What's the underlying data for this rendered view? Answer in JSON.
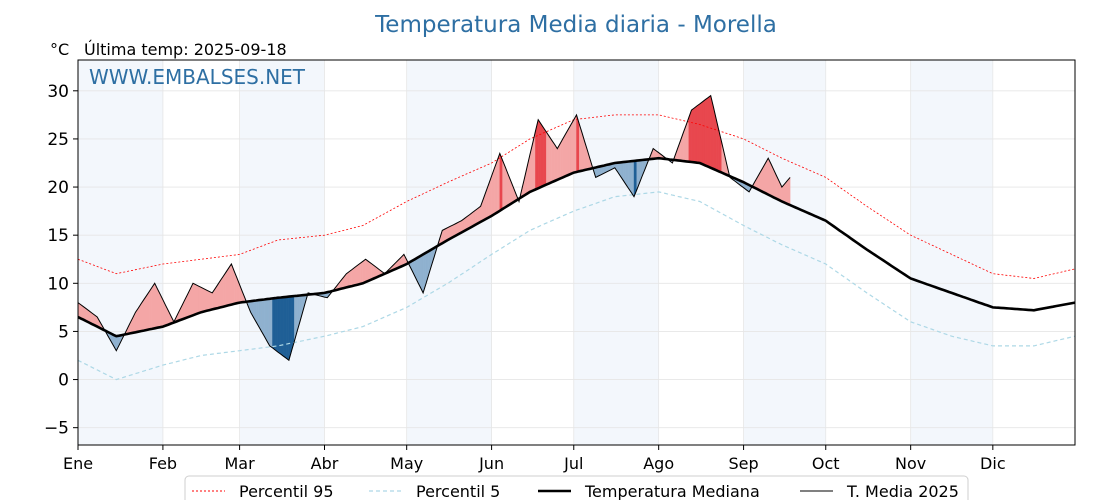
{
  "chart_data": {
    "type": "line",
    "title": "Temperatura Media diaria - Morella",
    "unit": "°C",
    "subtitle": "Última temp: 2025-09-18",
    "watermark": "WWW.EMBALSES.NET",
    "y_ticks": [
      -5,
      0,
      5,
      10,
      15,
      20,
      25,
      30
    ],
    "ylim": [
      -6.8,
      33.2
    ],
    "xlim": [
      1,
      365
    ],
    "x_ticks": [
      {
        "label": "Ene",
        "day": 1
      },
      {
        "label": "Feb",
        "day": 32
      },
      {
        "label": "Mar",
        "day": 60
      },
      {
        "label": "Abr",
        "day": 91
      },
      {
        "label": "May",
        "day": 121
      },
      {
        "label": "Jun",
        "day": 152
      },
      {
        "label": "Jul",
        "day": 182
      },
      {
        "label": "Ago",
        "day": 213
      },
      {
        "label": "Sep",
        "day": 244
      },
      {
        "label": "Oct",
        "day": 274
      },
      {
        "label": "Nov",
        "day": 305
      },
      {
        "label": "Dic",
        "day": 335
      }
    ],
    "grid": true,
    "shaded_months": [
      "Ene",
      "Mar",
      "May",
      "Jul",
      "Sep",
      "Nov"
    ],
    "legend": {
      "placement": "bottom",
      "items": [
        {
          "label": "Percentil 95",
          "color": "#ff0000",
          "style": "dotted"
        },
        {
          "label": "Percentil 5",
          "color": "#add8e6",
          "style": "dashed"
        },
        {
          "label": "Temperatura Mediana",
          "color": "#000000",
          "style": "thick"
        },
        {
          "label": "T. Media 2025",
          "color": "#000000",
          "style": "thin"
        }
      ]
    },
    "colors": {
      "above_median": "#f4a6a6",
      "above_p95": "#e8474e",
      "below_median": "#8fb1cf",
      "below_p5": "#1f5f96",
      "title": "#2e6fa3"
    },
    "series": [
      {
        "name": "Temperatura Mediana",
        "x": [
          1,
          15,
          32,
          46,
          60,
          74,
          91,
          105,
          121,
          136,
          152,
          166,
          182,
          197,
          213,
          228,
          244,
          258,
          274,
          289,
          305,
          320,
          335,
          350,
          365
        ],
        "values": [
          6.5,
          4.5,
          5.5,
          7.0,
          8.0,
          8.5,
          9.0,
          10.0,
          12.0,
          14.5,
          17.0,
          19.5,
          21.5,
          22.5,
          23.0,
          22.5,
          20.5,
          18.5,
          16.5,
          13.5,
          10.5,
          9.0,
          7.5,
          7.2,
          8.0
        ]
      },
      {
        "name": "Percentil 95",
        "x": [
          1,
          15,
          32,
          46,
          60,
          74,
          91,
          105,
          121,
          136,
          152,
          166,
          182,
          197,
          213,
          228,
          244,
          258,
          274,
          289,
          305,
          320,
          335,
          350,
          365
        ],
        "values": [
          12.5,
          11.0,
          12.0,
          12.5,
          13.0,
          14.5,
          15.0,
          16.0,
          18.5,
          20.5,
          22.5,
          25.0,
          27.0,
          27.5,
          27.5,
          26.5,
          25.0,
          23.0,
          21.0,
          18.0,
          15.0,
          13.0,
          11.0,
          10.5,
          11.5
        ]
      },
      {
        "name": "Percentil 5",
        "x": [
          1,
          15,
          32,
          46,
          60,
          74,
          91,
          105,
          121,
          136,
          152,
          166,
          182,
          197,
          213,
          228,
          244,
          258,
          274,
          289,
          305,
          320,
          335,
          350,
          365
        ],
        "values": [
          2.0,
          0.0,
          1.5,
          2.5,
          3.0,
          3.5,
          4.5,
          5.5,
          7.5,
          10.0,
          13.0,
          15.5,
          17.5,
          19.0,
          19.5,
          18.5,
          16.0,
          14.0,
          12.0,
          9.0,
          6.0,
          4.5,
          3.5,
          3.5,
          4.5
        ]
      },
      {
        "name": "T. Media 2025",
        "x": [
          1,
          8,
          15,
          22,
          29,
          36,
          43,
          50,
          57,
          64,
          71,
          78,
          85,
          92,
          99,
          106,
          113,
          120,
          127,
          134,
          141,
          148,
          155,
          162,
          169,
          176,
          183,
          190,
          197,
          204,
          211,
          218,
          225,
          232,
          239,
          246,
          253,
          258,
          261
        ],
        "values": [
          8.0,
          6.5,
          3.0,
          7.0,
          10.0,
          6.0,
          10.0,
          9.0,
          12.0,
          7.0,
          3.5,
          2.0,
          9.0,
          8.5,
          11.0,
          12.5,
          11.0,
          13.0,
          9.0,
          15.5,
          16.5,
          18.0,
          23.5,
          18.5,
          27.0,
          24.0,
          27.5,
          21.0,
          22.0,
          19.0,
          24.0,
          22.5,
          28.0,
          29.5,
          21.0,
          19.5,
          23.0,
          20.0,
          21.0
        ]
      }
    ]
  }
}
